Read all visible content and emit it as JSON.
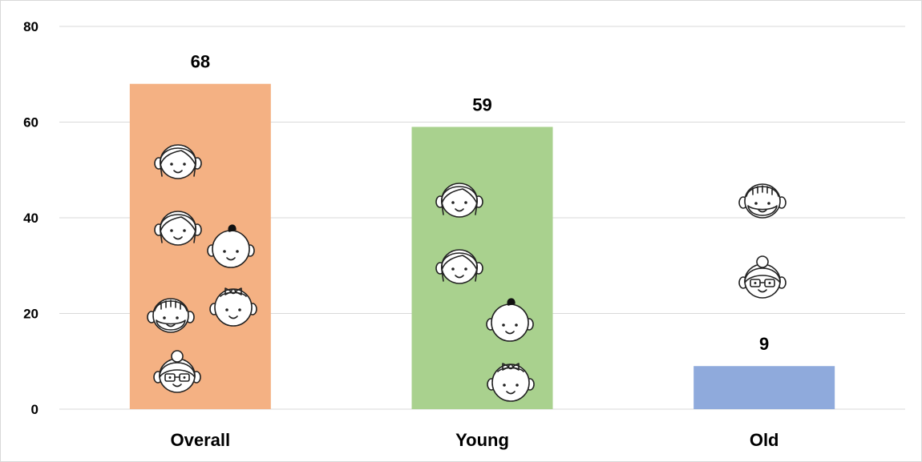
{
  "chart_data": {
    "type": "bar",
    "categories": [
      "Overall",
      "Young",
      "Old"
    ],
    "values": [
      68,
      59,
      9
    ],
    "colors": [
      "#f4b183",
      "#a9d18e",
      "#8faadc"
    ],
    "ylim": [
      0,
      80
    ],
    "yticks": [
      0,
      20,
      40,
      60,
      80
    ],
    "grid": true,
    "legend": "none",
    "icons": {
      "Overall": [
        "woman-face-icon",
        "woman-face-icon",
        "baby-boy-face-icon",
        "old-man-face-icon",
        "baby-girl-face-icon",
        "old-woman-face-icon"
      ],
      "Young": [
        "woman-face-icon",
        "woman-face-icon",
        "baby-boy-face-icon",
        "baby-girl-face-icon"
      ],
      "Old": [
        "old-man-face-icon",
        "old-woman-face-icon"
      ]
    }
  }
}
